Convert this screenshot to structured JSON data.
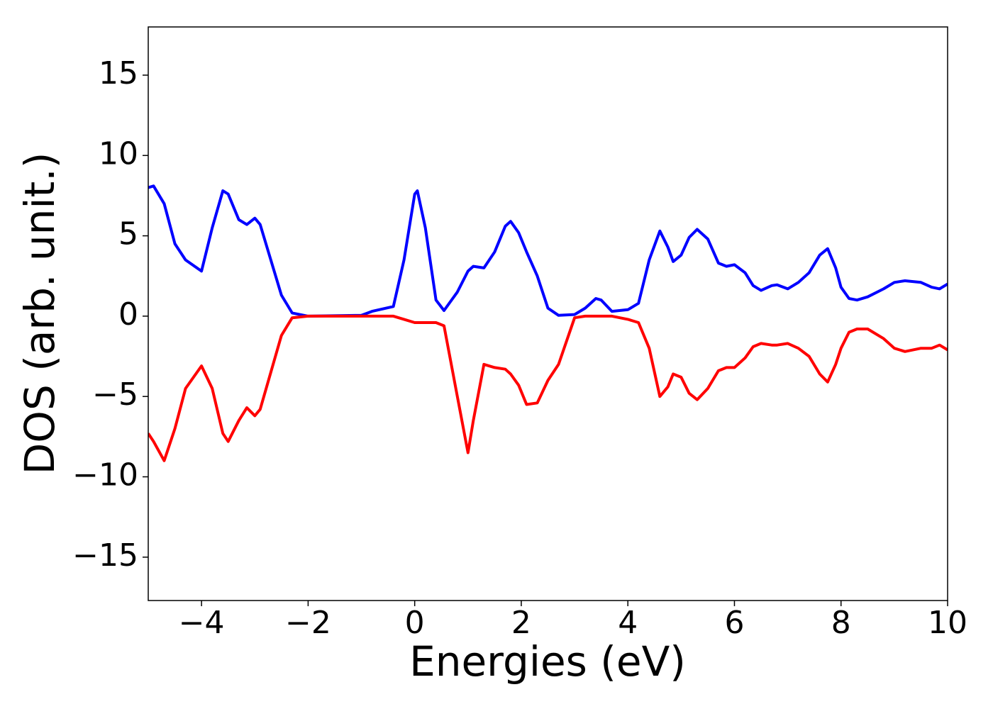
{
  "chart_data": {
    "type": "line",
    "xlabel": "Energies (eV)",
    "ylabel": "DOS (arb. unit.)",
    "xlim": [
      -5,
      10
    ],
    "ylim": [
      -17.7,
      18
    ],
    "xticks": [
      {
        "value": -4,
        "label": "−4"
      },
      {
        "value": -2,
        "label": "−2"
      },
      0,
      2,
      4,
      6,
      8,
      10
    ],
    "yticks": [
      {
        "value": -15,
        "label": "−15"
      },
      {
        "value": -10,
        "label": "−10"
      },
      {
        "value": -5,
        "label": "−5"
      },
      0,
      5,
      10,
      15
    ],
    "x": [
      -5,
      -4.9,
      -4.7,
      -4.5,
      -4.3,
      -4.0,
      -3.8,
      -3.6,
      -3.5,
      -3.3,
      -3.15,
      -3.0,
      -2.9,
      -2.7,
      -2.5,
      -2.3,
      -2.0,
      -1.0,
      -0.8,
      -0.6,
      -0.4,
      -0.2,
      0.0,
      0.05,
      0.2,
      0.4,
      0.55,
      0.8,
      1.0,
      1.1,
      1.3,
      1.5,
      1.7,
      1.8,
      1.95,
      2.1,
      2.3,
      2.5,
      2.7,
      3.0,
      3.2,
      3.4,
      3.5,
      3.7,
      4.0,
      4.2,
      4.4,
      4.6,
      4.75,
      4.85,
      5.0,
      5.15,
      5.3,
      5.5,
      5.7,
      5.85,
      6.0,
      6.2,
      6.35,
      6.5,
      6.7,
      6.8,
      7.0,
      7.2,
      7.4,
      7.6,
      7.75,
      7.9,
      8.0,
      8.15,
      8.3,
      8.5,
      8.8,
      9.0,
      9.2,
      9.5,
      9.7,
      9.85,
      10.0
    ],
    "series": [
      {
        "color": "#0000ff",
        "values": [
          8.0,
          8.1,
          7.0,
          4.5,
          3.5,
          2.8,
          5.5,
          7.8,
          7.6,
          6.0,
          5.7,
          6.1,
          5.7,
          3.5,
          1.3,
          0.2,
          0.0,
          0.05,
          0.3,
          0.45,
          0.6,
          3.5,
          7.6,
          7.8,
          5.5,
          1.0,
          0.35,
          1.5,
          2.8,
          3.1,
          3.0,
          4.0,
          5.6,
          5.9,
          5.2,
          4.0,
          2.5,
          0.5,
          0.05,
          0.1,
          0.5,
          1.1,
          1.0,
          0.3,
          0.4,
          0.8,
          3.5,
          5.3,
          4.3,
          3.4,
          3.8,
          4.9,
          5.4,
          4.8,
          3.3,
          3.1,
          3.2,
          2.7,
          1.9,
          1.6,
          1.9,
          1.95,
          1.7,
          2.1,
          2.7,
          3.8,
          4.2,
          3.0,
          1.8,
          1.1,
          1.0,
          1.2,
          1.7,
          2.1,
          2.2,
          2.1,
          1.8,
          1.7,
          2.0
        ]
      },
      {
        "color": "#ff0000",
        "values": [
          -7.3,
          -7.8,
          -9.0,
          -7.0,
          -4.5,
          -3.1,
          -4.5,
          -7.3,
          -7.8,
          -6.5,
          -5.7,
          -6.2,
          -5.8,
          -3.5,
          -1.2,
          -0.1,
          0.0,
          0.0,
          0.0,
          0.0,
          0.0,
          -0.2,
          -0.4,
          -0.4,
          -0.4,
          -0.4,
          -0.6,
          -5.0,
          -8.5,
          -6.5,
          -3.0,
          -3.2,
          -3.3,
          -3.6,
          -4.3,
          -5.5,
          -5.4,
          -4.0,
          -3.0,
          -0.1,
          0.0,
          0.0,
          0.0,
          0.0,
          -0.2,
          -0.4,
          -2.0,
          -5.0,
          -4.4,
          -3.6,
          -3.8,
          -4.8,
          -5.2,
          -4.5,
          -3.4,
          -3.2,
          -3.2,
          -2.6,
          -1.9,
          -1.7,
          -1.8,
          -1.8,
          -1.7,
          -2.0,
          -2.5,
          -3.6,
          -4.1,
          -3.0,
          -2.0,
          -1.0,
          -0.8,
          -0.8,
          -1.4,
          -2.0,
          -2.2,
          -2.0,
          -2.0,
          -1.8,
          -2.1
        ]
      }
    ]
  }
}
